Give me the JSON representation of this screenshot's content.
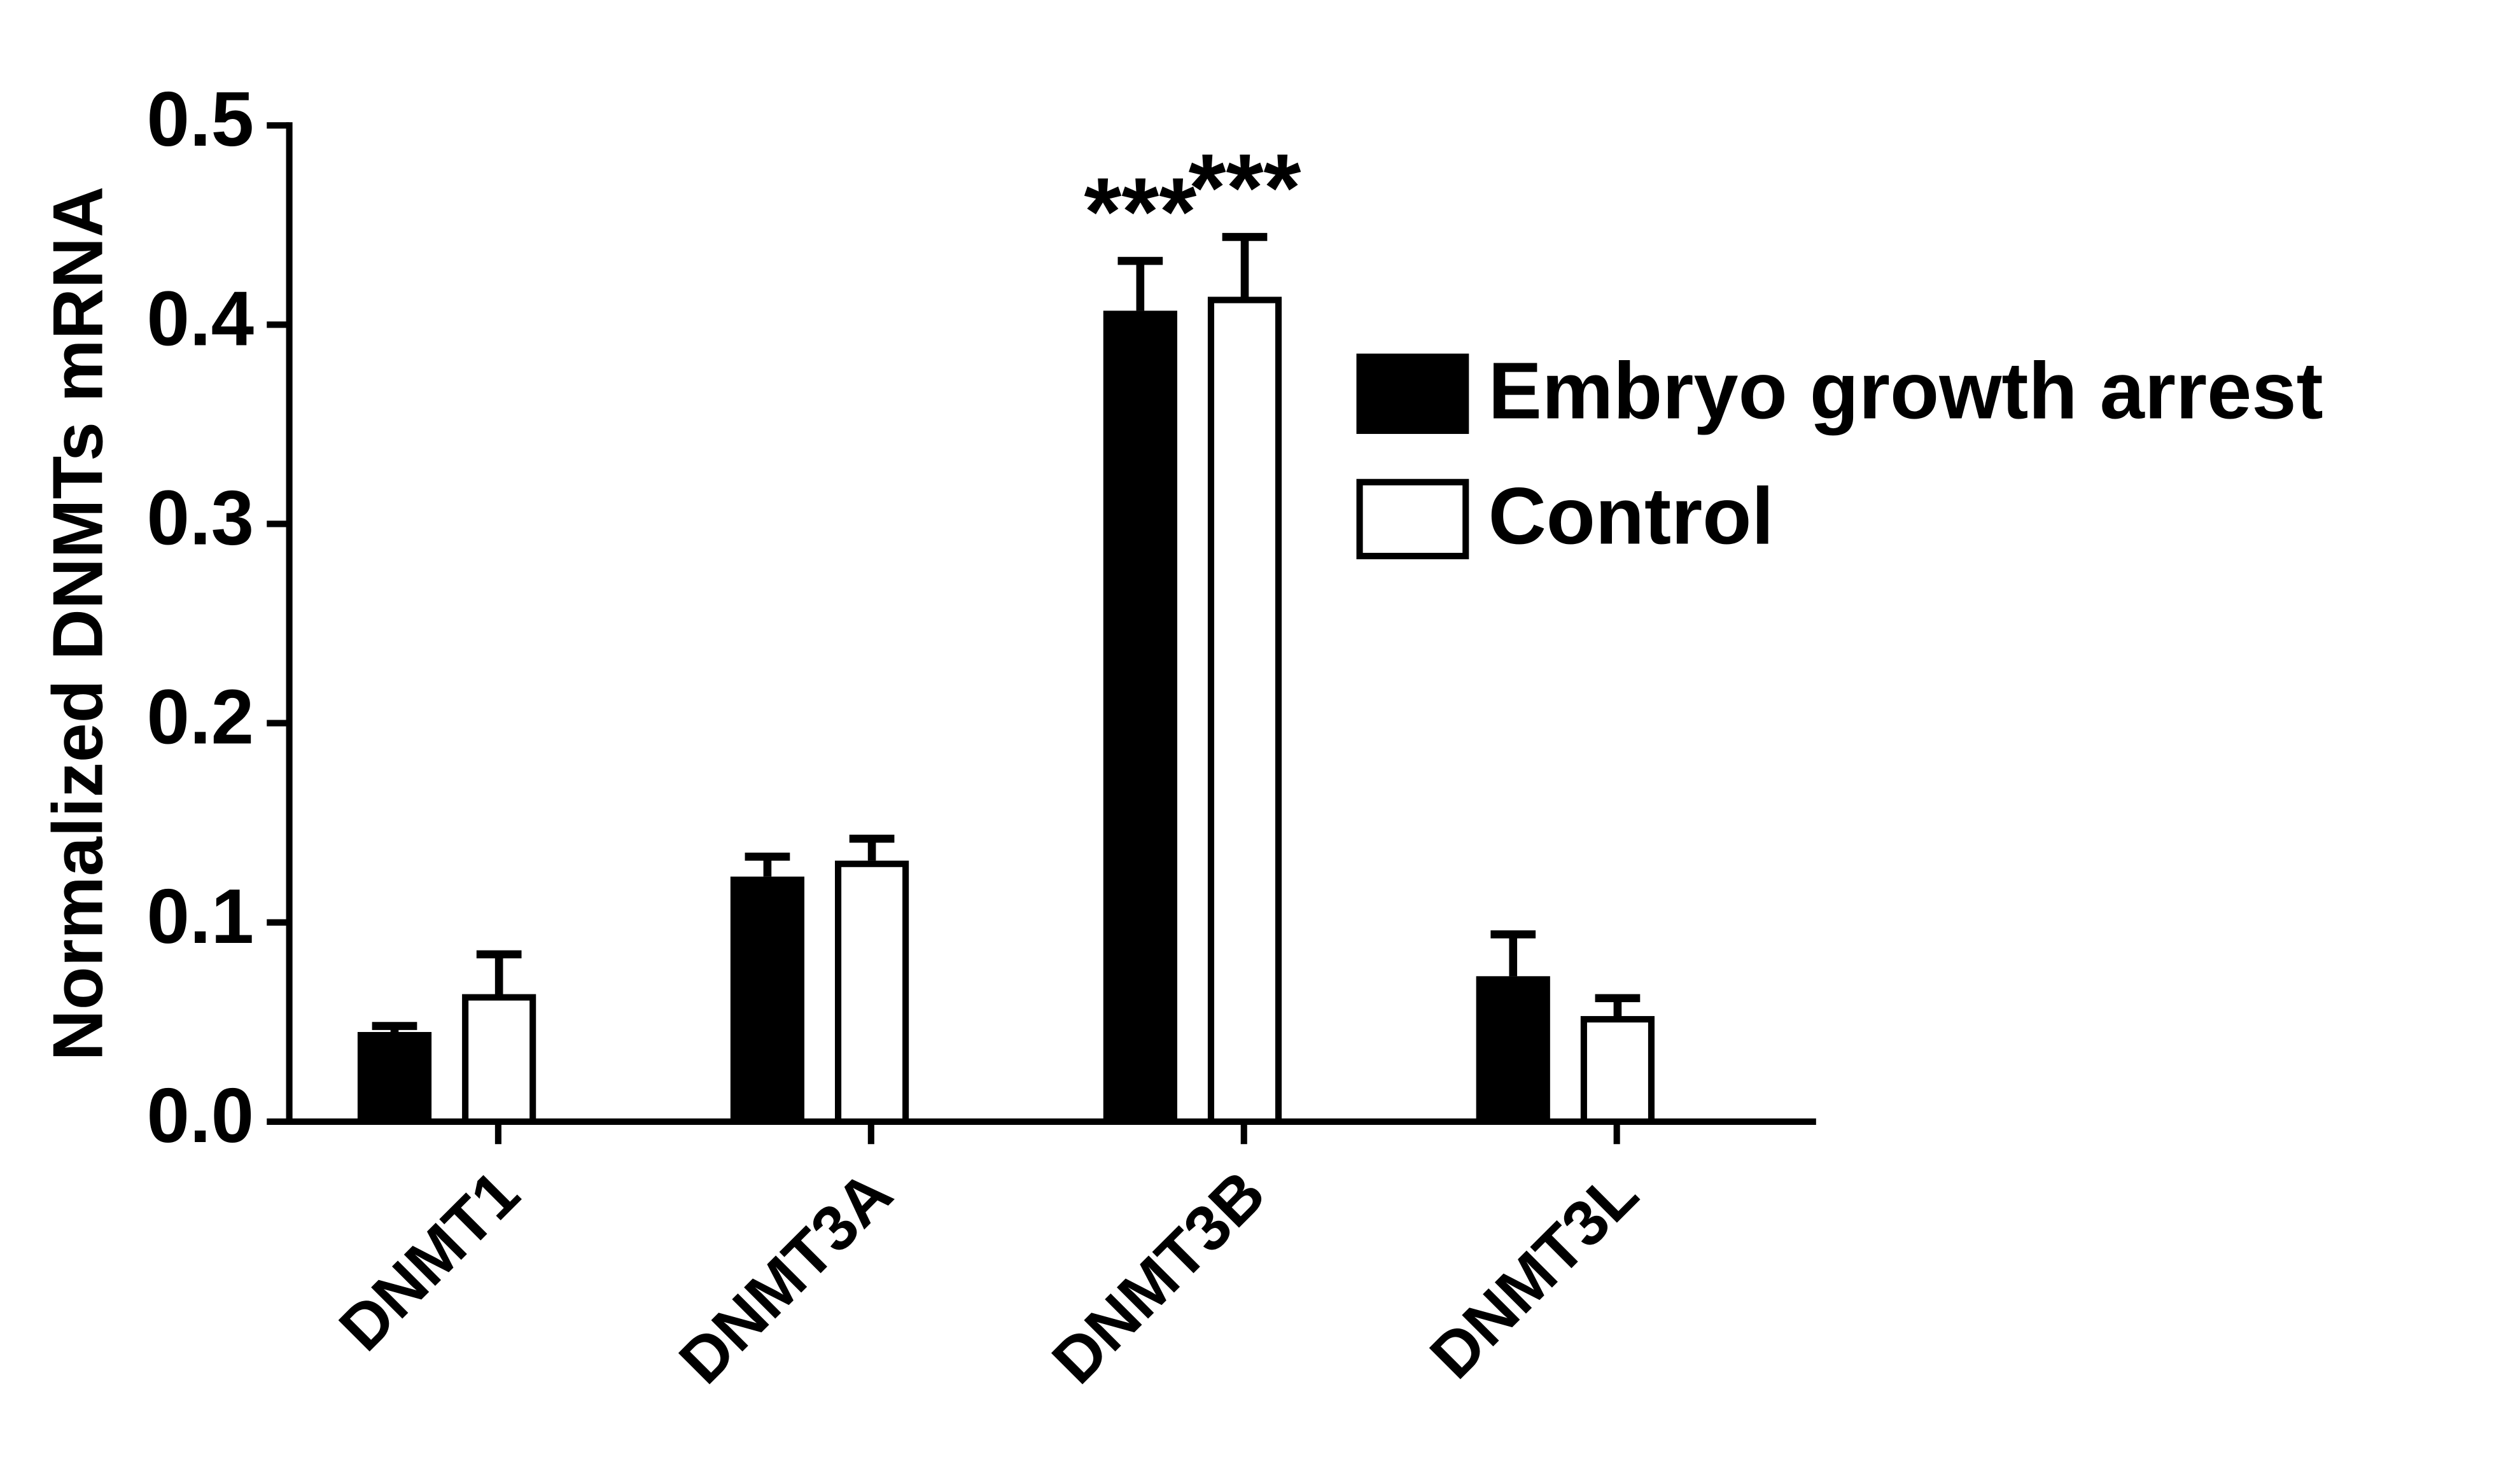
{
  "chart_data": {
    "type": "bar",
    "y_label": "Normalized DNMTs mRNA",
    "categories": [
      "DNMT1",
      "DNMT3A",
      "DNMT3B",
      "DNMT3L"
    ],
    "series": [
      {
        "name": "Embryo growth arrest",
        "color": "#000000",
        "values": [
          0.045,
          0.123,
          0.407,
          0.073
        ],
        "errors": [
          0.003,
          0.01,
          0.025,
          0.021
        ]
      },
      {
        "name": "Control",
        "color": "#ffffff",
        "values": [
          0.064,
          0.131,
          0.414,
          0.053
        ],
        "errors": [
          0.02,
          0.011,
          0.03,
          0.009
        ]
      }
    ],
    "annotations": [
      "***",
      "***"
    ],
    "ylim": [
      0,
      0.5
    ],
    "yticks": [
      {
        "value": 0,
        "label": "0.0"
      },
      0.1,
      0.2,
      0.3,
      0.4,
      0.5
    ],
    "legend": "upper right"
  }
}
